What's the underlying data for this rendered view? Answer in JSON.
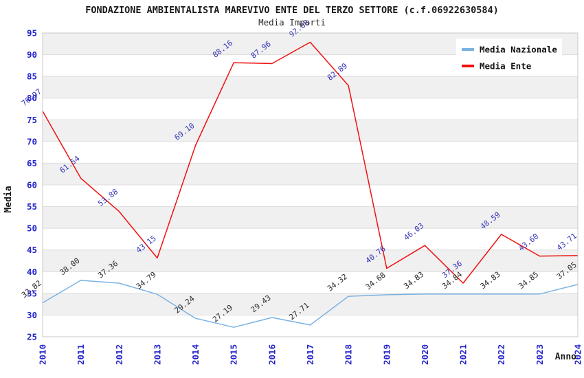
{
  "title": "FONDAZIONE AMBIENTALISTA MAREVIVO ENTE DEL TERZO SETTORE (c.f.06922630584)",
  "subtitle": "Media Importi",
  "chart_data": {
    "type": "line",
    "categories": [
      "2010",
      "2011",
      "2012",
      "2013",
      "2014",
      "2015",
      "2016",
      "2017",
      "2018",
      "2019",
      "2020",
      "2021",
      "2022",
      "2023",
      "2024"
    ],
    "series": [
      {
        "name": "Media Nazionale",
        "color": "#7ab2e2",
        "label_color": "#2b2b2b",
        "values": [
          32.82,
          38.0,
          37.36,
          34.79,
          29.24,
          27.19,
          29.43,
          27.71,
          34.32,
          34.68,
          34.83,
          34.84,
          34.83,
          34.85,
          37.05
        ],
        "labels": [
          "32.82",
          "38.00",
          "37.36",
          "34.79",
          "29.24",
          "27.19",
          "29.43",
          "27.71",
          "34.32",
          "34.68",
          "34.83",
          "34.84",
          "34.83",
          "34.85",
          "37.05"
        ]
      },
      {
        "name": "Media Ente",
        "color": "#f01010",
        "label_color": "#3434b8",
        "values": [
          76.97,
          61.54,
          53.88,
          43.15,
          69.1,
          88.16,
          87.96,
          92.88,
          82.89,
          40.76,
          46.03,
          37.36,
          48.59,
          43.6,
          43.71
        ],
        "labels": [
          "76.97",
          "61.54",
          "53.88",
          "43.15",
          "69.10",
          "88.16",
          "87.96",
          "92.88",
          "82.89",
          "40.76",
          "46.03",
          "37.36",
          "48.59",
          "43.60",
          "43.71"
        ]
      }
    ],
    "xlabel": "Anno",
    "ylabel": "Media",
    "ylim": [
      25,
      95
    ],
    "ytick_step": 5,
    "grid": true,
    "legend_position": "top-right",
    "band_color_odd": "#f0f0f0",
    "band_color_even": "#ffffff",
    "grid_color": "#dcdcdc",
    "border_color": "#c8c8c8",
    "tick_color": "#2525cd",
    "legend_text_color": "#111111",
    "title_color": "#1a1a1a"
  }
}
